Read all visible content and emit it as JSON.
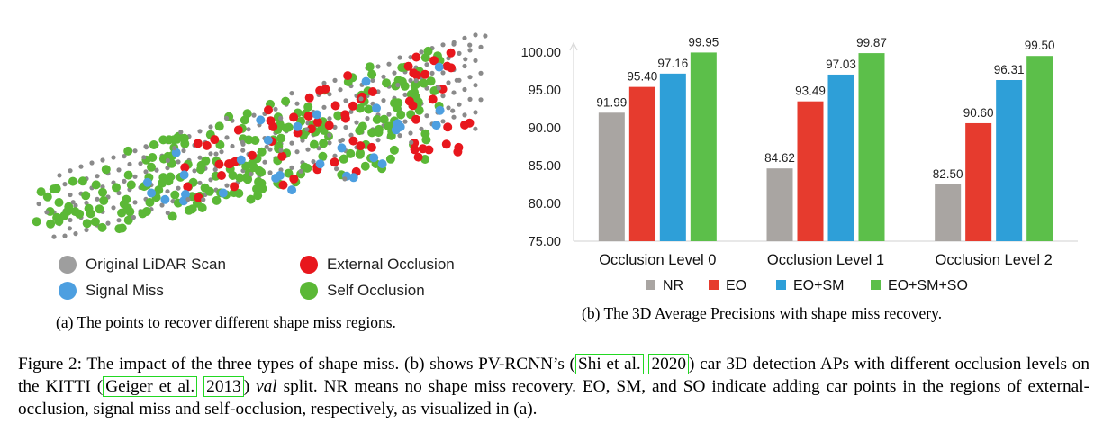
{
  "panel_a": {
    "legend": [
      {
        "label": "Original LiDAR Scan",
        "color": "#9e9e9e"
      },
      {
        "label": "External Occlusion",
        "color": "#e8171d"
      },
      {
        "label": "Signal Miss",
        "color": "#4d9fe0"
      },
      {
        "label": "Self Occlusion",
        "color": "#5bb836"
      }
    ],
    "caption": "(a) The points to recover different shape miss regions."
  },
  "panel_b": {
    "caption": "(b) The 3D Average Precisions with shape miss recovery."
  },
  "chart_data": {
    "type": "bar",
    "title": "",
    "xlabel": "",
    "ylabel": "",
    "ylim": [
      75,
      100
    ],
    "yticks": [
      "75.00",
      "80.00",
      "85.00",
      "90.00",
      "95.00",
      "100.00"
    ],
    "categories": [
      "Occlusion Level 0",
      "Occlusion Level 1",
      "Occlusion Level 2"
    ],
    "series": [
      {
        "name": "NR",
        "color": "#a9a5a2",
        "values": [
          91.99,
          84.62,
          82.5
        ],
        "labels": [
          "91.99",
          "84.62",
          "82.50"
        ]
      },
      {
        "name": "EO",
        "color": "#e63b2e",
        "values": [
          95.4,
          93.49,
          90.6
        ],
        "labels": [
          "95.40",
          "93.49",
          "90.60"
        ]
      },
      {
        "name": "EO+SM",
        "color": "#2e9fd8",
        "values": [
          97.16,
          97.03,
          96.31
        ],
        "labels": [
          "97.16",
          "97.03",
          "96.31"
        ]
      },
      {
        "name": "EO+SM+SO",
        "color": "#5cbf4a",
        "values": [
          99.95,
          99.87,
          99.5
        ],
        "labels": [
          "99.95",
          "99.87",
          "99.50"
        ]
      }
    ],
    "legend_position": "bottom"
  },
  "figure_caption": {
    "p1": "Figure 2: The impact of the three types of shape miss. (b) shows PV-RCNN’s (",
    "cite1_author": "Shi et al.",
    "cite1_year": "2020",
    "p2": ") car 3D detection APs with different occlusion levels on the KITTI (",
    "cite2_author": "Geiger et al.",
    "cite2_year": "2013",
    "p3": ") ",
    "val": "val",
    "p4": " split. NR means no shape miss recovery. EO, SM, and SO indicate adding car points in the regions of external-occlusion, signal miss and self-occlusion, respectively, as visualized in (a)."
  }
}
